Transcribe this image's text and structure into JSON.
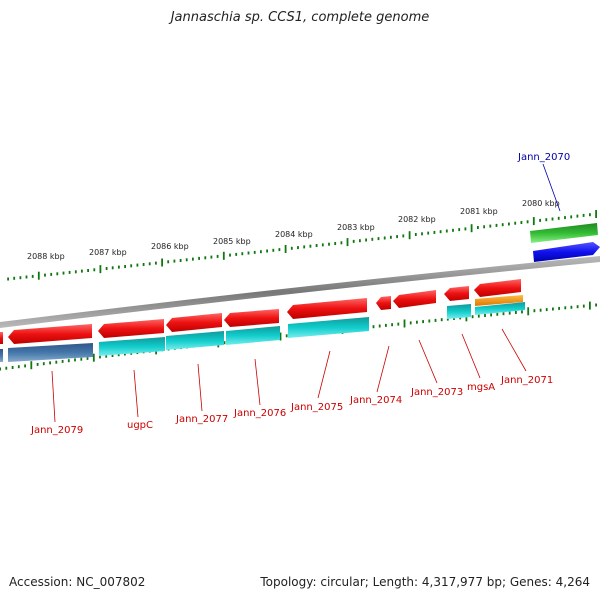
{
  "title": "Jannaschia sp. CCS1, complete genome",
  "footer": {
    "accession": "Accession: NC_007802",
    "summary": "Topology: circular; Length: 4,317,977 bp; Genes: 4,264"
  },
  "colors": {
    "forward_gene": "#ee1111",
    "reverse_cds": "#11cccc",
    "reverse_other": "#4477aa",
    "upper_green": "#33bb33",
    "upper_blue": "#1111ee",
    "orange_gene": "#ee8800",
    "backbone": "#888888",
    "tick": "#117711",
    "label_red": "#cc0000",
    "label_blue": "#0000aa"
  },
  "kbp_labels": [
    "2088 kbp",
    "2087 kbp",
    "2086 kbp",
    "2085 kbp",
    "2084 kbp",
    "2083 kbp",
    "2082 kbp",
    "2081 kbp",
    "2080 kbp"
  ],
  "gene_labels": [
    {
      "name": "Jann_2079",
      "color": "red"
    },
    {
      "name": "ugpC",
      "color": "red"
    },
    {
      "name": "Jann_2077",
      "color": "red"
    },
    {
      "name": "Jann_2076",
      "color": "red"
    },
    {
      "name": "Jann_2075",
      "color": "red"
    },
    {
      "name": "Jann_2074",
      "color": "red"
    },
    {
      "name": "Jann_2073",
      "color": "red"
    },
    {
      "name": "mgsA",
      "color": "red"
    },
    {
      "name": "Jann_2071",
      "color": "red"
    },
    {
      "name": "Jann_2070",
      "color": "blue"
    }
  ]
}
